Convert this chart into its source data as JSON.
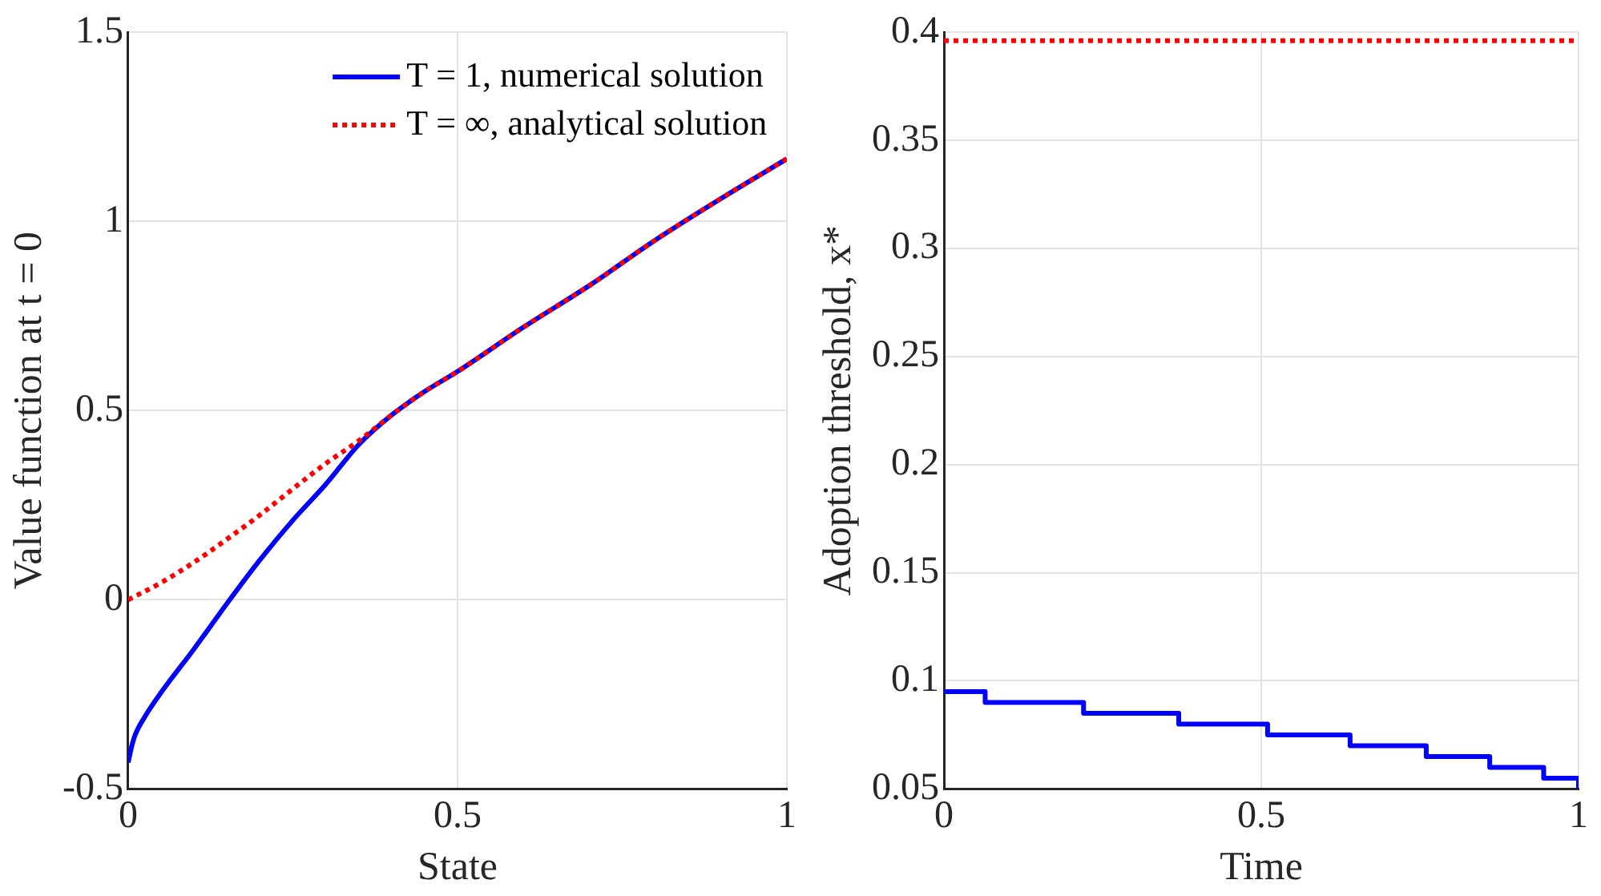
{
  "chart_data": [
    {
      "type": "line",
      "xlabel": "State",
      "ylabel": "Value function at t = 0",
      "xlim": [
        0,
        1
      ],
      "xticks": [
        0,
        0.5,
        1
      ],
      "ylim": [
        -0.5,
        1.5
      ],
      "yticks": [
        -0.5,
        0,
        0.5,
        1,
        1.5
      ],
      "grid": true,
      "legend": "top right",
      "marker": "none",
      "series": [
        {
          "name": "T = 1, numerical solution",
          "color": "#0000ff",
          "line_style": "solid",
          "x": [
            0,
            0.005,
            0.01,
            0.025,
            0.05,
            0.1,
            0.15,
            0.2,
            0.25,
            0.3,
            0.35,
            0.4,
            0.45,
            0.5,
            0.6,
            0.7,
            0.8,
            0.9,
            1
          ],
          "values": [
            -0.43,
            -0.39,
            -0.36,
            -0.31,
            -0.245,
            -0.13,
            -0.01,
            0.105,
            0.21,
            0.305,
            0.41,
            0.488,
            0.55,
            0.603,
            0.72,
            0.83,
            0.95,
            1.06,
            1.165
          ]
        },
        {
          "name": "T = ∞, analytical solution",
          "color": "#ff0000",
          "line_style": "dotted",
          "x": [
            0,
            0.05,
            0.1,
            0.15,
            0.2,
            0.25,
            0.3,
            0.35,
            0.4,
            0.45,
            0.5,
            0.6,
            0.7,
            0.8,
            0.9,
            1
          ],
          "values": [
            0,
            0.045,
            0.099,
            0.16,
            0.224,
            0.293,
            0.36,
            0.42,
            0.488,
            0.55,
            0.603,
            0.72,
            0.83,
            0.95,
            1.06,
            1.165
          ]
        }
      ]
    },
    {
      "type": "step",
      "xlabel": "Time",
      "ylabel": "Adoption threshold, x*",
      "xlim": [
        0,
        1
      ],
      "xticks": [
        0,
        0.5,
        1
      ],
      "ylim": [
        0.05,
        0.4
      ],
      "yticks": [
        0.05,
        0.1,
        0.15,
        0.2,
        0.25,
        0.3,
        0.35,
        0.4
      ],
      "grid": true,
      "marker": "none",
      "series": [
        {
          "color": "#0000ff",
          "line_style": "solid",
          "x": [
            0,
            0.065,
            0.22,
            0.37,
            0.51,
            0.64,
            0.76,
            0.86,
            0.945,
            1
          ],
          "values": [
            0.095,
            0.09,
            0.085,
            0.08,
            0.075,
            0.07,
            0.065,
            0.06,
            0.055,
            0.05
          ]
        }
      ],
      "ref_lines": [
        {
          "axis": "y",
          "value": 0.396,
          "color": "#ff0000",
          "line_style": "dotted"
        }
      ]
    }
  ]
}
